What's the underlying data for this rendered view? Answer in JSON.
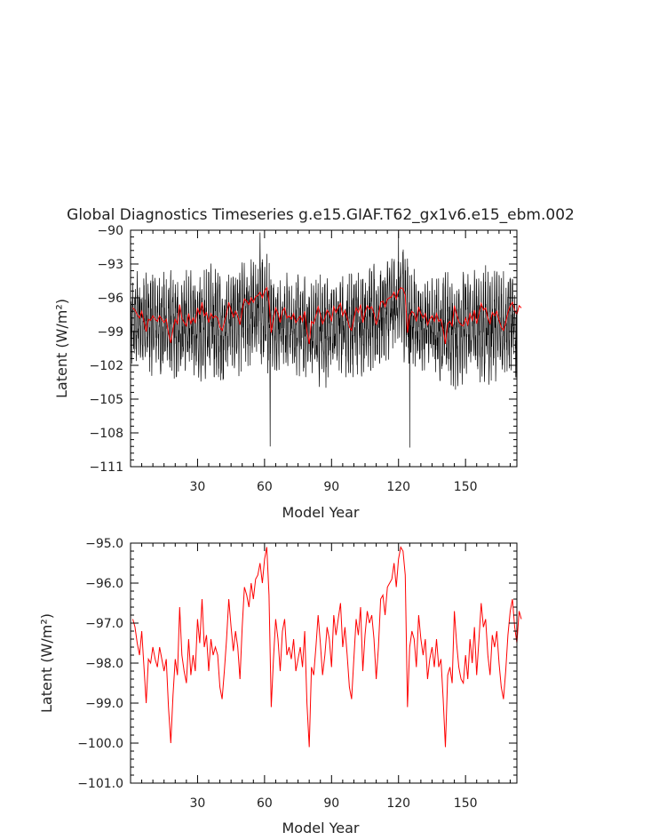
{
  "title": "Global Diagnostics Timeseries g.e15.GIAF.T62_gx1v6.e15_ebm.002",
  "colors": {
    "monthly": "#000000",
    "annual": "#ff0000",
    "axes": "#000000"
  },
  "chart_data": [
    {
      "type": "line",
      "xlabel": "Model Year",
      "ylabel": "Latent (W/m²)",
      "xlim": [
        0,
        173
      ],
      "ylim": [
        -111,
        -90
      ],
      "xticks": [
        30,
        60,
        90,
        120,
        150
      ],
      "yticks": [
        -111,
        -108,
        -105,
        -102,
        -99,
        -96,
        -93,
        -90
      ],
      "xtick_labels": [
        "30",
        "60",
        "90",
        "120",
        "150"
      ],
      "ytick_labels": [
        "−111",
        "−108",
        "−105",
        "−102",
        "−99",
        "−96",
        "−93",
        "−90"
      ],
      "grid": false,
      "series": [
        {
          "kind": "monthly",
          "color": "#000000",
          "envelope_x": [
            0,
            5,
            10,
            15,
            20,
            25,
            30,
            35,
            40,
            45,
            50,
            55,
            60,
            62,
            65,
            70,
            75,
            80,
            85,
            90,
            95,
            100,
            105,
            110,
            115,
            120,
            123,
            125,
            130,
            135,
            140,
            145,
            150,
            155,
            160,
            165,
            170,
            173
          ],
          "envelope_high": [
            -94.0,
            -93.2,
            -93.6,
            -93.2,
            -93.6,
            -93.4,
            -93.6,
            -92.7,
            -93.1,
            -93.3,
            -92.3,
            -92.3,
            -91.2,
            -91.8,
            -93.8,
            -93.5,
            -93.8,
            -94.0,
            -93.6,
            -93.8,
            -93.3,
            -93.0,
            -93.0,
            -92.8,
            -92.0,
            -91.3,
            -90.6,
            -92.5,
            -94.0,
            -94.0,
            -93.5,
            -93.7,
            -93.3,
            -93.0,
            -93.0,
            -93.2,
            -93.2,
            -93.5
          ],
          "envelope_low": [
            -102.5,
            -102.8,
            -103.0,
            -103.5,
            -104.0,
            -103.5,
            -103.5,
            -103.5,
            -104.0,
            -103.0,
            -103.0,
            -102.5,
            -102.5,
            -103.5,
            -102.8,
            -103.0,
            -103.5,
            -104.0,
            -104.5,
            -103.5,
            -103.0,
            -103.5,
            -103.0,
            -103.0,
            -102.0,
            -101.5,
            -101.8,
            -102.8,
            -102.8,
            -103.2,
            -104.0,
            -104.5,
            -103.5,
            -104.0,
            -104.0,
            -103.2,
            -103.0,
            -104.0
          ],
          "spikes": [
            {
              "x": 62.5,
              "y": -109.2
            },
            {
              "x": 125,
              "y": -109.3
            },
            {
              "x": 58,
              "y": -90.2
            },
            {
              "x": 120,
              "y": -90.2
            }
          ]
        },
        {
          "kind": "annual",
          "color": "#ff0000",
          "x_start": 1,
          "x_step": 1
        }
      ]
    },
    {
      "type": "line",
      "xlabel": "Model Year",
      "ylabel": "Latent (W/m²)",
      "xlim": [
        0,
        173
      ],
      "ylim": [
        -101,
        -95
      ],
      "xticks": [
        30,
        60,
        90,
        120,
        150
      ],
      "yticks": [
        -101,
        -100,
        -99,
        -98,
        -97,
        -96,
        -95
      ],
      "xtick_labels": [
        "30",
        "60",
        "90",
        "120",
        "150"
      ],
      "ytick_labels": [
        "−101.0",
        "−100.0",
        "−99.0",
        "−98.0",
        "−97.0",
        "−96.0",
        "−95.0"
      ],
      "grid": false,
      "series": [
        {
          "kind": "annual",
          "color": "#ff0000",
          "x_start": 1,
          "x_step": 1,
          "y": [
            -96.9,
            -97.1,
            -97.5,
            -97.8,
            -97.2,
            -98.1,
            -99.0,
            -97.9,
            -98.0,
            -97.6,
            -97.9,
            -98.1,
            -97.6,
            -97.9,
            -98.2,
            -97.9,
            -99.1,
            -100.0,
            -98.8,
            -97.9,
            -98.3,
            -96.6,
            -97.8,
            -98.2,
            -98.5,
            -97.4,
            -98.3,
            -97.8,
            -98.2,
            -96.9,
            -97.5,
            -96.4,
            -97.6,
            -97.3,
            -98.2,
            -97.4,
            -97.8,
            -97.6,
            -97.8,
            -98.6,
            -98.9,
            -98.2,
            -97.4,
            -96.4,
            -97.1,
            -97.7,
            -97.2,
            -97.6,
            -98.4,
            -97.1,
            -96.1,
            -96.3,
            -96.6,
            -96.0,
            -96.4,
            -95.9,
            -95.8,
            -95.5,
            -96.0,
            -95.4,
            -95.1,
            -96.3,
            -99.1,
            -97.9,
            -96.9,
            -97.4,
            -98.2,
            -97.2,
            -96.9,
            -97.8,
            -97.6,
            -97.9,
            -97.4,
            -98.2,
            -97.9,
            -97.6,
            -98.1,
            -97.2,
            -99.0,
            -100.1,
            -98.1,
            -98.3,
            -97.6,
            -96.8,
            -97.5,
            -98.3,
            -97.8,
            -97.1,
            -97.4,
            -98.1,
            -96.8,
            -97.3,
            -96.9,
            -96.5,
            -97.6,
            -97.1,
            -97.8,
            -98.6,
            -98.9,
            -97.9,
            -96.9,
            -97.3,
            -96.6,
            -98.2,
            -97.3,
            -96.7,
            -97.0,
            -96.8,
            -97.4,
            -98.4,
            -97.6,
            -96.4,
            -96.3,
            -96.8,
            -96.1,
            -96.0,
            -95.9,
            -95.5,
            -96.1,
            -95.4,
            -95.1,
            -95.2,
            -95.8,
            -99.1,
            -97.6,
            -97.2,
            -97.4,
            -98.1,
            -96.8,
            -97.4,
            -97.8,
            -97.4,
            -98.4,
            -97.9,
            -97.6,
            -98.1,
            -97.4,
            -98.1,
            -97.9,
            -98.9,
            -100.1,
            -98.3,
            -98.1,
            -98.5,
            -96.7,
            -97.5,
            -98.1,
            -98.4,
            -98.5,
            -97.8,
            -98.4,
            -97.4,
            -98.0,
            -97.1,
            -98.3,
            -97.4,
            -96.5,
            -97.1,
            -96.9,
            -97.8,
            -98.3,
            -97.3,
            -97.6,
            -97.2,
            -98.0,
            -98.6,
            -98.9,
            -98.2,
            -97.3,
            -96.7,
            -96.4,
            -97.1,
            -97.5,
            -96.7,
            -96.9
          ]
        }
      ]
    }
  ]
}
